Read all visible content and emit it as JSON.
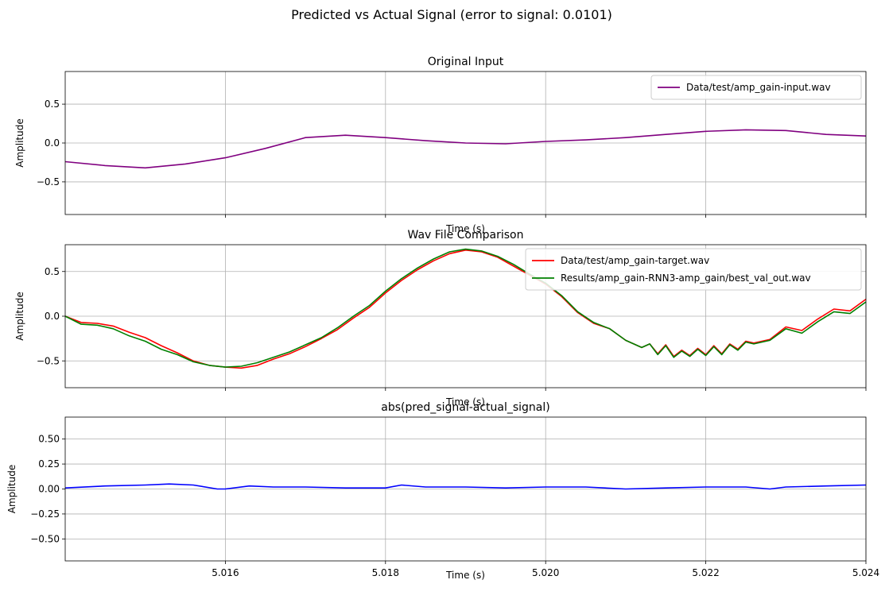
{
  "figure": {
    "suptitle": "Predicted vs Actual Signal (error to signal: 0.0101)"
  },
  "chart_data": [
    {
      "type": "line",
      "title": "Original Input",
      "xlabel": "Time (s)",
      "ylabel": "Amplitude",
      "xlim": [
        5.014,
        5.024
      ],
      "ylim": [
        -0.92,
        0.92
      ],
      "yticks": [
        -0.5,
        0.0,
        0.5
      ],
      "ytick_labels": [
        "−0.5",
        "0.0",
        "0.5"
      ],
      "xticks": [
        5.016,
        5.018,
        5.02,
        5.022,
        5.024
      ],
      "xtick_labels": [
        "",
        "",
        "",
        "",
        ""
      ],
      "grid": true,
      "legend": "upper-right",
      "series": [
        {
          "name": "Data/test/amp_gain-input.wav",
          "color": "#800080",
          "x": [
            5.014,
            5.0145,
            5.015,
            5.0155,
            5.016,
            5.0165,
            5.017,
            5.0175,
            5.018,
            5.0185,
            5.019,
            5.0195,
            5.02,
            5.0205,
            5.021,
            5.0215,
            5.022,
            5.0225,
            5.023,
            5.0235,
            5.024
          ],
          "y": [
            -0.24,
            -0.29,
            -0.32,
            -0.27,
            -0.19,
            -0.07,
            0.07,
            0.1,
            0.07,
            0.03,
            0.0,
            -0.01,
            0.02,
            0.04,
            0.07,
            0.11,
            0.15,
            0.17,
            0.16,
            0.11,
            0.09
          ]
        }
      ]
    },
    {
      "type": "line",
      "title": "Wav File Comparison",
      "xlabel": "Time (s)",
      "ylabel": "Amplitude",
      "xlim": [
        5.014,
        5.024
      ],
      "ylim": [
        -0.8,
        0.8
      ],
      "yticks": [
        -0.5,
        0.0,
        0.5
      ],
      "ytick_labels": [
        "−0.5",
        "0.0",
        "0.5"
      ],
      "xticks": [
        5.016,
        5.018,
        5.02,
        5.022,
        5.024
      ],
      "xtick_labels": [
        "",
        "",
        "",
        "",
        ""
      ],
      "grid": true,
      "legend": "upper-right",
      "series": [
        {
          "name": "Data/test/amp_gain-target.wav",
          "color": "#ff0000",
          "x": [
            5.014,
            5.0142,
            5.0144,
            5.0146,
            5.0148,
            5.015,
            5.0152,
            5.0154,
            5.0156,
            5.0158,
            5.016,
            5.0162,
            5.0164,
            5.0166,
            5.0168,
            5.017,
            5.0172,
            5.0174,
            5.0176,
            5.0178,
            5.018,
            5.0182,
            5.0184,
            5.0186,
            5.0188,
            5.019,
            5.0192,
            5.0194,
            5.0196,
            5.0198,
            5.02,
            5.0202,
            5.0204,
            5.0206,
            5.0208,
            5.021,
            5.0212,
            5.0213,
            5.0214,
            5.0215,
            5.0216,
            5.0217,
            5.0218,
            5.0219,
            5.022,
            5.0221,
            5.0222,
            5.0223,
            5.0224,
            5.0225,
            5.0226,
            5.0228,
            5.023,
            5.0232,
            5.0234,
            5.0236,
            5.0238,
            5.024
          ],
          "y": [
            0.0,
            -0.07,
            -0.08,
            -0.11,
            -0.18,
            -0.24,
            -0.33,
            -0.41,
            -0.5,
            -0.55,
            -0.57,
            -0.58,
            -0.55,
            -0.48,
            -0.42,
            -0.34,
            -0.25,
            -0.15,
            -0.02,
            0.1,
            0.26,
            0.4,
            0.52,
            0.62,
            0.7,
            0.74,
            0.72,
            0.66,
            0.56,
            0.46,
            0.36,
            0.22,
            0.04,
            -0.08,
            -0.14,
            -0.27,
            -0.35,
            -0.31,
            -0.42,
            -0.32,
            -0.45,
            -0.38,
            -0.44,
            -0.36,
            -0.43,
            -0.33,
            -0.42,
            -0.31,
            -0.37,
            -0.28,
            -0.3,
            -0.26,
            -0.12,
            -0.16,
            -0.03,
            0.08,
            0.06,
            0.19
          ]
        },
        {
          "name": "Results/amp_gain-RNN3-amp_gain/best_val_out.wav",
          "color": "#008000",
          "x": [
            5.014,
            5.0142,
            5.0144,
            5.0146,
            5.0148,
            5.015,
            5.0152,
            5.0154,
            5.0156,
            5.0158,
            5.016,
            5.0162,
            5.0164,
            5.0166,
            5.0168,
            5.017,
            5.0172,
            5.0174,
            5.0176,
            5.0178,
            5.018,
            5.0182,
            5.0184,
            5.0186,
            5.0188,
            5.019,
            5.0192,
            5.0194,
            5.0196,
            5.0198,
            5.02,
            5.0202,
            5.0204,
            5.0206,
            5.0208,
            5.021,
            5.0212,
            5.0213,
            5.0214,
            5.0215,
            5.0216,
            5.0217,
            5.0218,
            5.0219,
            5.022,
            5.0221,
            5.0222,
            5.0223,
            5.0224,
            5.0225,
            5.0226,
            5.0228,
            5.023,
            5.0232,
            5.0234,
            5.0236,
            5.0238,
            5.024
          ],
          "y": [
            0.0,
            -0.09,
            -0.1,
            -0.14,
            -0.22,
            -0.28,
            -0.37,
            -0.43,
            -0.51,
            -0.55,
            -0.57,
            -0.56,
            -0.52,
            -0.46,
            -0.4,
            -0.32,
            -0.24,
            -0.13,
            0.0,
            0.12,
            0.28,
            0.42,
            0.54,
            0.64,
            0.72,
            0.75,
            0.73,
            0.67,
            0.58,
            0.47,
            0.37,
            0.23,
            0.05,
            -0.07,
            -0.14,
            -0.27,
            -0.35,
            -0.31,
            -0.43,
            -0.33,
            -0.46,
            -0.39,
            -0.45,
            -0.37,
            -0.44,
            -0.34,
            -0.43,
            -0.32,
            -0.38,
            -0.29,
            -0.31,
            -0.27,
            -0.14,
            -0.19,
            -0.06,
            0.05,
            0.03,
            0.16
          ]
        }
      ]
    },
    {
      "type": "line",
      "title": "abs(pred_signal-actual_signal)",
      "xlabel": "Time (s)",
      "ylabel": "Amplitude",
      "xlim": [
        5.014,
        5.024
      ],
      "ylim": [
        -0.72,
        0.72
      ],
      "yticks": [
        -0.5,
        -0.25,
        0.0,
        0.25,
        0.5
      ],
      "ytick_labels": [
        "−0.50",
        "−0.25",
        "0.00",
        "0.25",
        "0.50"
      ],
      "xticks": [
        5.016,
        5.018,
        5.02,
        5.022,
        5.024
      ],
      "xtick_labels": [
        "5.016",
        "5.018",
        "5.020",
        "5.022",
        "5.024"
      ],
      "grid": true,
      "series": [
        {
          "color": "#0000ff",
          "x": [
            5.014,
            5.0145,
            5.015,
            5.0153,
            5.0156,
            5.0159,
            5.016,
            5.0163,
            5.0166,
            5.017,
            5.0175,
            5.018,
            5.0182,
            5.0185,
            5.019,
            5.0195,
            5.02,
            5.0205,
            5.021,
            5.0215,
            5.022,
            5.0225,
            5.0228,
            5.023,
            5.0235,
            5.024
          ],
          "y": [
            0.01,
            0.03,
            0.04,
            0.05,
            0.04,
            0.0,
            0.0,
            0.03,
            0.02,
            0.02,
            0.01,
            0.01,
            0.04,
            0.02,
            0.02,
            0.01,
            0.02,
            0.02,
            0.0,
            0.01,
            0.02,
            0.02,
            0.0,
            0.02,
            0.03,
            0.04
          ]
        }
      ]
    }
  ]
}
